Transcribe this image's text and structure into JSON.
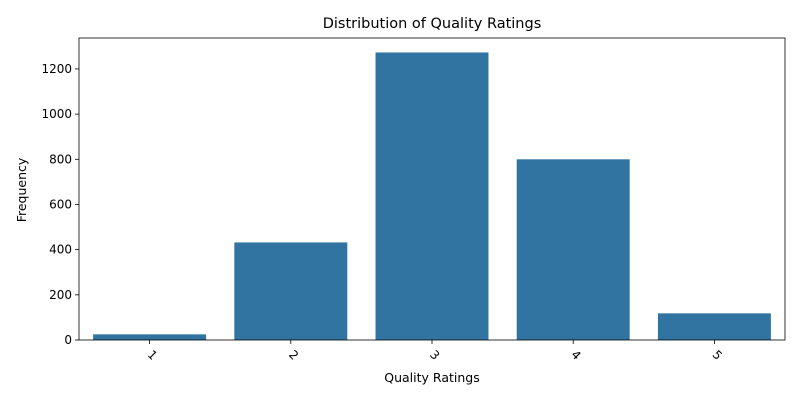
{
  "chart_data": {
    "type": "bar",
    "title": "Distribution of Quality Ratings",
    "xlabel": "Quality Ratings",
    "ylabel": "Frequency",
    "categories": [
      "1",
      "2",
      "3",
      "4",
      "5"
    ],
    "values": [
      25,
      432,
      1273,
      800,
      118
    ],
    "ylim": [
      0,
      1337
    ],
    "yticks": [
      0,
      200,
      400,
      600,
      800,
      1000,
      1200
    ],
    "xtick_rotation_deg": 45,
    "bar_color": "#3274a1",
    "grid": false,
    "legend": "none"
  }
}
